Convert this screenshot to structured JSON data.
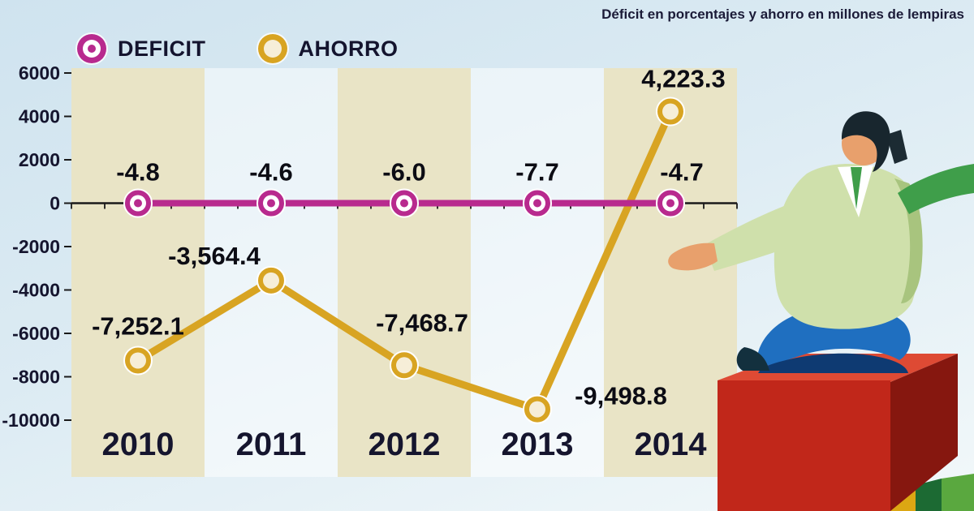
{
  "header": {
    "subtitle": "Déficit en porcentajes y ahorro en millones de lempiras"
  },
  "legend": {
    "items": [
      {
        "label": "DEFICIT",
        "color": "#b82a8e",
        "marker_fill": "#ffffff"
      },
      {
        "label": "AHORRO",
        "color": "#d8a422",
        "marker_fill": "#f6eed8"
      }
    ]
  },
  "chart_data": {
    "type": "line",
    "title": "",
    "subtitle": "Déficit en porcentajes y ahorro en millones de lempiras",
    "categories": [
      "2010",
      "2011",
      "2012",
      "2013",
      "2014"
    ],
    "series": [
      {
        "name": "DEFICIT",
        "unit": "porcentajes",
        "values": [
          -4.8,
          -4.6,
          -6.0,
          -7.7,
          -4.7
        ],
        "labels": [
          "-4.8",
          "-4.6",
          "-6.0",
          "-7.7",
          "-4.7"
        ],
        "plot_on_zero_line": true,
        "color": "#b82a8e",
        "marker_fill": "#ffffff",
        "center_dot": true,
        "label_offsets": [
          [
            0,
            -28
          ],
          [
            0,
            -28
          ],
          [
            0,
            -28
          ],
          [
            0,
            -28
          ],
          [
            14,
            -28
          ]
        ]
      },
      {
        "name": "AHORRO",
        "unit": "millones de lempiras",
        "values": [
          -7252.1,
          -3564.4,
          -7468.7,
          -9498.8,
          4223.3
        ],
        "labels": [
          "-7,252.1",
          "-3,564.4",
          "-7,468.7",
          "-9,498.8",
          "4,223.3"
        ],
        "plot_on_zero_line": false,
        "color": "#d8a422",
        "marker_fill": "#f6eed8",
        "center_dot": false,
        "label_offsets": [
          [
            0,
            -32
          ],
          [
            -70,
            -20
          ],
          [
            22,
            -42
          ],
          [
            103,
            -6
          ],
          [
            16,
            -30
          ]
        ]
      }
    ],
    "ylim": [
      -10000,
      6000
    ],
    "yticks": [
      6000,
      4000,
      2000,
      0,
      -2000,
      -4000,
      -6000,
      -8000,
      -10000
    ],
    "grid": false,
    "legend_position": "top-left",
    "band_colors": [
      "#e9e4c6",
      "rgba(255,255,255,0.5)"
    ],
    "axis_color": "#1a1a1a",
    "tick_label_color": "#15152e",
    "data_label_color": "#0c0c14",
    "year_label_color": "#15152e"
  }
}
